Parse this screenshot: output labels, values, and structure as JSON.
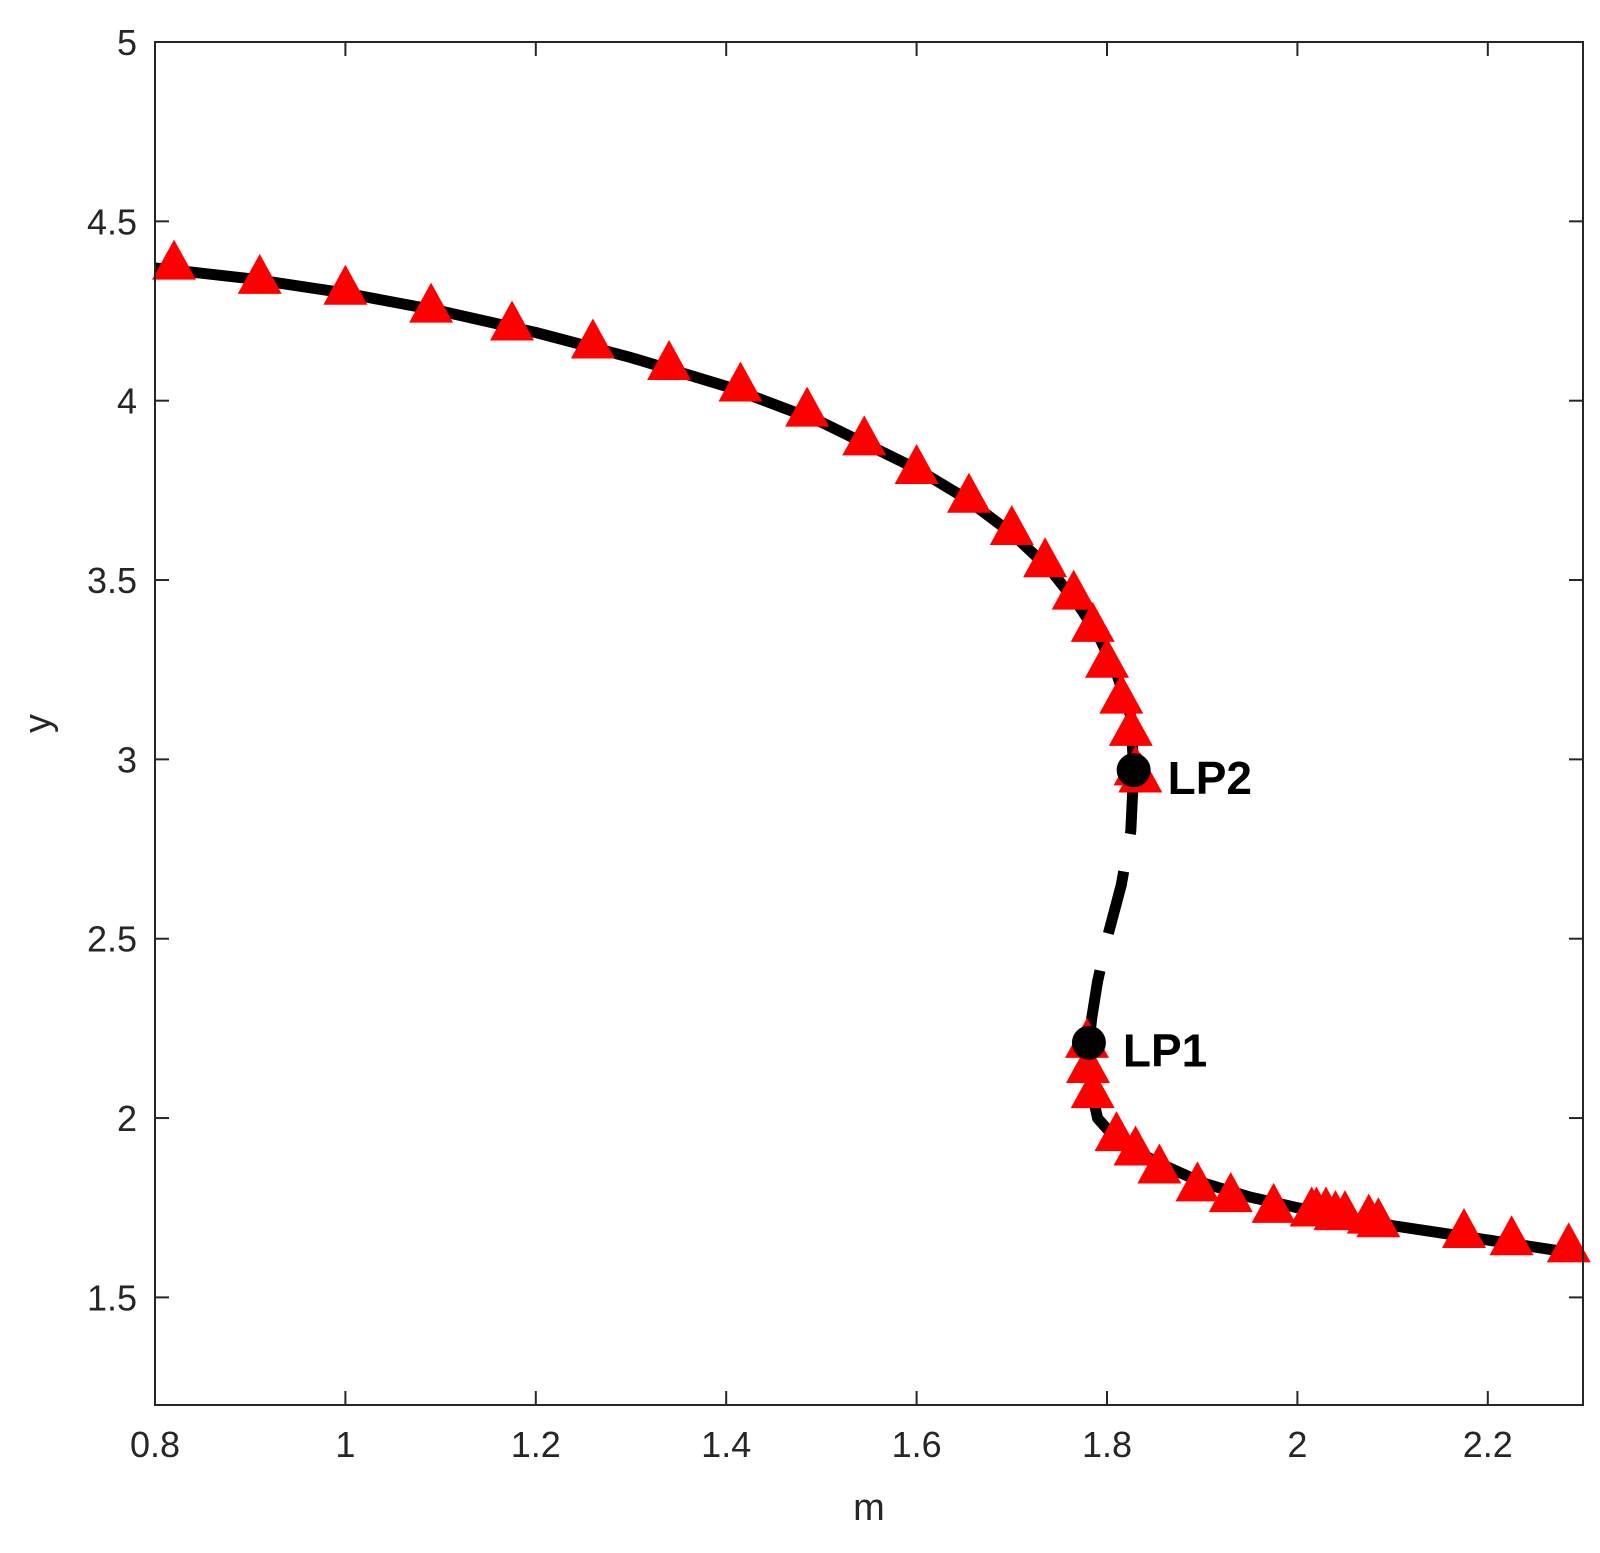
{
  "chart_data": {
    "type": "line",
    "xlabel": "m",
    "ylabel": "y",
    "xlim": [
      0.8,
      2.3
    ],
    "ylim": [
      1.2,
      5.0
    ],
    "x_ticks": [
      "0.8",
      "1",
      "1.2",
      "1.4",
      "1.6",
      "1.8",
      "2",
      "2.2"
    ],
    "y_ticks": [
      "1.5",
      "2",
      "2.5",
      "3",
      "3.5",
      "4",
      "4.5",
      "5"
    ],
    "grid": false,
    "colors": {
      "curve": "#000000",
      "marker": "#ff0000",
      "limit_point": "#000000"
    },
    "series": [
      {
        "style": "solid",
        "x": [
          0.8,
          0.9,
          1.0,
          1.1,
          1.2,
          1.3,
          1.4,
          1.5,
          1.6,
          1.65,
          1.7,
          1.74,
          1.77,
          1.79,
          1.81,
          1.825,
          1.828
        ],
        "y": [
          4.37,
          4.34,
          4.3,
          4.25,
          4.19,
          4.12,
          4.04,
          3.94,
          3.81,
          3.73,
          3.63,
          3.53,
          3.43,
          3.35,
          3.24,
          3.12,
          2.97
        ]
      },
      {
        "style": "dashed",
        "x": [
          1.828,
          1.825,
          1.815,
          1.8,
          1.79,
          1.784,
          1.781
        ],
        "y": [
          2.97,
          2.8,
          2.65,
          2.5,
          2.38,
          2.28,
          2.21
        ]
      },
      {
        "style": "solid",
        "x": [
          1.781,
          1.782,
          1.79,
          1.81,
          1.85,
          1.9,
          1.95,
          2.0,
          2.1,
          2.2,
          2.3
        ],
        "y": [
          2.21,
          2.1,
          2.0,
          1.94,
          1.88,
          1.82,
          1.78,
          1.75,
          1.7,
          1.66,
          1.62
        ]
      }
    ],
    "markers": {
      "shape": "triangle",
      "x": [
        0.82,
        0.91,
        1.0,
        1.09,
        1.175,
        1.26,
        1.34,
        1.415,
        1.485,
        1.545,
        1.6,
        1.655,
        1.7,
        1.735,
        1.765,
        1.785,
        1.8,
        1.815,
        1.825,
        1.83,
        1.835,
        1.779,
        1.78,
        1.785,
        1.81,
        1.83,
        1.855,
        1.895,
        1.93,
        1.975,
        2.015,
        2.02,
        2.03,
        2.04,
        2.05,
        2.075,
        2.085,
        2.175,
        2.225,
        2.285
      ],
      "y": [
        4.38,
        4.34,
        4.31,
        4.26,
        4.21,
        4.16,
        4.1,
        4.04,
        3.97,
        3.89,
        3.81,
        3.73,
        3.64,
        3.55,
        3.46,
        3.37,
        3.27,
        3.17,
        3.08,
        2.97,
        2.95,
        2.21,
        2.14,
        2.07,
        1.95,
        1.91,
        1.86,
        1.81,
        1.78,
        1.75,
        1.74,
        1.74,
        1.74,
        1.73,
        1.73,
        1.72,
        1.71,
        1.68,
        1.66,
        1.64
      ]
    },
    "annotations": [
      {
        "label": "LP2",
        "x": 1.828,
        "y": 2.97
      },
      {
        "label": "LP1",
        "x": 1.781,
        "y": 2.21
      }
    ]
  }
}
